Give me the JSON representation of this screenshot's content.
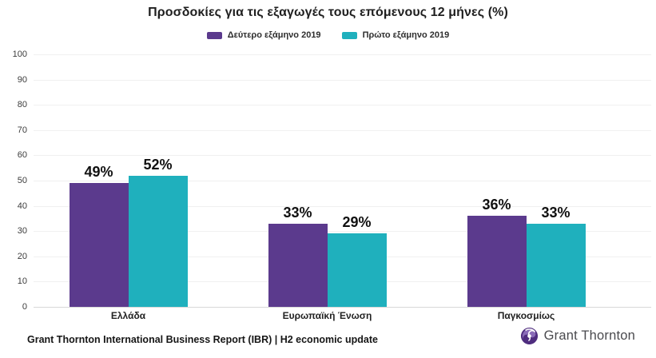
{
  "title": "Προσδοκίες για τις εξαγωγές τους επόμενους 12 μήνες (%)",
  "colors": {
    "series_purple": "#5b3a8d",
    "series_teal": "#1fb0bd",
    "brand_purple": "#4f2d7f",
    "brand_purple_light": "#8a6bb8",
    "gridline": "#f0f0f0",
    "baseline": "#d8d8d8"
  },
  "chart_data": {
    "type": "bar",
    "title": "Προσδοκίες για τις εξαγωγές τους επόμενους 12 μήνες (%)",
    "categories": [
      "Ελλάδα",
      "Ευρωπαϊκή Ένωση",
      "Παγκοσμίως"
    ],
    "series": [
      {
        "name": "Δεύτερο εξάμηνο 2019",
        "color": "#5b3a8d",
        "values": [
          49,
          33,
          36
        ]
      },
      {
        "name": "Πρώτο εξάμηνο 2019",
        "color": "#1fb0bd",
        "values": [
          52,
          29,
          33
        ]
      }
    ],
    "value_labels": [
      [
        "49%",
        "52%"
      ],
      [
        "33%",
        "29%"
      ],
      [
        "36%",
        "33%"
      ]
    ],
    "xlabel": "",
    "ylabel": "",
    "ylim": [
      0,
      100
    ],
    "yticks": [
      0,
      10,
      20,
      30,
      40,
      50,
      60,
      70,
      80,
      90,
      100
    ],
    "grid": true,
    "legend_position": "top"
  },
  "footer": {
    "source": "Grant Thornton International Business Report (IBR) | H2 economic update",
    "brand_name": "Grant Thornton"
  }
}
